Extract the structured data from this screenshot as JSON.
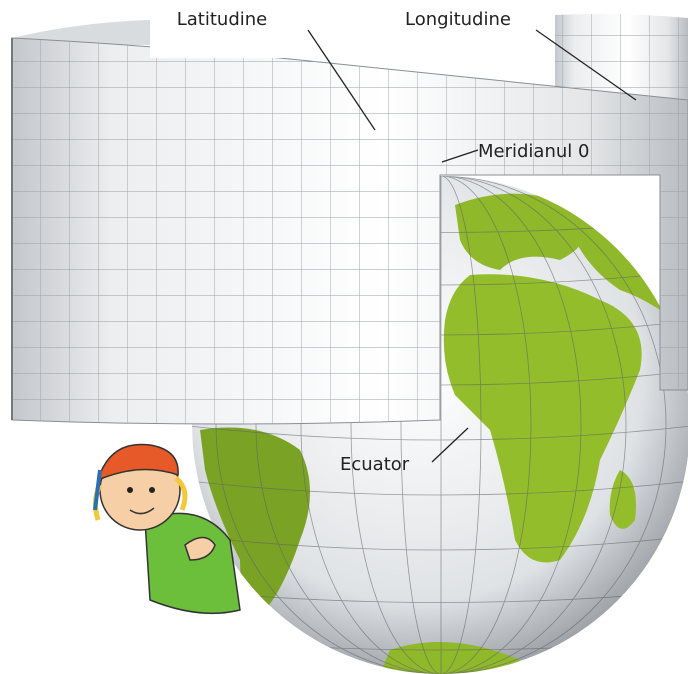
{
  "labels": {
    "latitude": "Latitudine",
    "longitude": "Longitudine",
    "prime_meridian": "Meridianul 0",
    "equator": "Ecuator"
  }
}
